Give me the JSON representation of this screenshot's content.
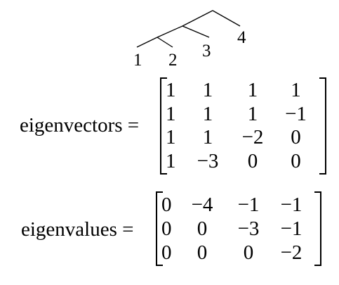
{
  "tree": {
    "leaves": [
      "1",
      "2",
      "3",
      "4"
    ]
  },
  "eigenvectors": {
    "label": "eigenvectors",
    "equals": "=",
    "rows": [
      [
        "1",
        "1",
        "1",
        "1"
      ],
      [
        "1",
        "1",
        "1",
        "−1"
      ],
      [
        "1",
        "1",
        "−2",
        "0"
      ],
      [
        "1",
        "−3",
        "0",
        "0"
      ]
    ]
  },
  "eigenvalues": {
    "label": "eigenvalues",
    "equals": "=",
    "rows": [
      [
        "0",
        "−4",
        "−1",
        "−1"
      ],
      [
        "0",
        "0",
        "−3",
        "−1"
      ],
      [
        "0",
        "0",
        "0",
        "−2"
      ]
    ]
  }
}
